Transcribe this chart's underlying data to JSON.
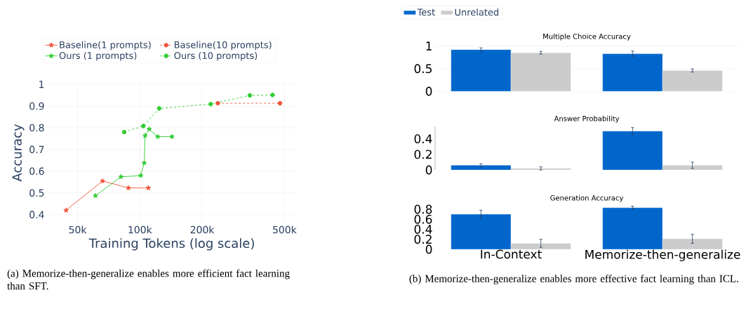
{
  "chart_data": [
    {
      "type": "line",
      "xlabel": "Training Tokens (log scale)",
      "ylabel": "Accuracy",
      "log": "x",
      "grid": true,
      "legend": "top",
      "xlim": [
        35600,
        574000
      ],
      "ylim": [
        0.36,
        1.01
      ],
      "xticks": [
        {
          "value": 50000,
          "label": "50k"
        },
        {
          "value": 100000,
          "label": "100k"
        },
        {
          "value": 200000,
          "label": "200k"
        },
        {
          "value": 500000,
          "label": "500k"
        }
      ],
      "yticks": [
        0.4,
        0.5,
        0.6,
        0.7,
        0.8,
        0.9,
        1
      ],
      "series": [
        {
          "name": "Baseline(1 prompts)",
          "color": "#ef553b",
          "marker": "star",
          "line_style": "solid",
          "x": [
            44000,
            66000,
            88000,
            110000
          ],
          "values": [
            0.42,
            0.555,
            0.523,
            0.523
          ]
        },
        {
          "name": "Baseline(10 prompts)",
          "color": "#ef553b",
          "marker": "circle",
          "line_style": "dashed",
          "x": [
            238000,
            476000
          ],
          "values": [
            0.913,
            0.913
          ]
        },
        {
          "name": "Ours (1 prompts)",
          "color": "#33cc33",
          "marker": "star",
          "line_style": "solid",
          "x": [
            61000,
            81000,
            101000,
            105000,
            106000,
            111000,
            122000,
            143000
          ],
          "values": [
            0.487,
            0.574,
            0.58,
            0.638,
            0.764,
            0.794,
            0.759,
            0.759
          ]
        },
        {
          "name": "Ours (10 prompts)",
          "color": "#33cc33",
          "marker": "circle",
          "line_style": "dashed",
          "x": [
            84000,
            104000,
            124000,
            220000,
            340000,
            438000
          ],
          "values": [
            0.78,
            0.808,
            0.889,
            0.909,
            0.949,
            0.951
          ]
        }
      ],
      "annotations": [
        "(a) Memorize-then-generalize enables more efficient fact learning than SFT."
      ]
    },
    {
      "type": "bar",
      "title": "Multiple Choice Accuracy",
      "ylim": [
        0,
        1.04
      ],
      "yticks": [
        0,
        0.5,
        1
      ],
      "grid": true,
      "legend": "top",
      "tick_labels": "y",
      "series": [
        {
          "name": "Test",
          "color": "#0066cc",
          "values": [
            0.92,
            0.83
          ],
          "errors": [
            0.04,
            0.06
          ]
        },
        {
          "name": "Unrelated",
          "color": "#cccccc",
          "values": [
            0.85,
            0.46
          ],
          "errors": [
            0.03,
            0.035
          ]
        }
      ]
    },
    {
      "type": "bar",
      "title": "Answer Probability",
      "ylim": [
        0,
        0.56
      ],
      "yticks": [
        0,
        0.2,
        0.4
      ],
      "tick_labels": "y",
      "series": [
        {
          "color": "#0066cc",
          "values": [
            0.06,
            0.5
          ],
          "errors": [
            0.02,
            0.045
          ]
        },
        {
          "color": "#cccccc",
          "values": [
            0.02,
            0.06
          ],
          "errors": [
            0.02,
            0.04
          ]
        }
      ]
    },
    {
      "type": "bar",
      "title": "Generation Accuracy",
      "categories": [
        "In-Context",
        "Memorize-then-generalize"
      ],
      "ylim": [
        0,
        0.87
      ],
      "yticks": [
        0,
        0.2,
        0.4,
        0.6,
        0.8
      ],
      "series": [
        {
          "color": "#0066cc",
          "values": [
            0.7,
            0.83
          ],
          "errors": [
            0.08,
            0.03
          ]
        },
        {
          "color": "#cccccc",
          "values": [
            0.12,
            0.21
          ],
          "errors": [
            0.08,
            0.09
          ]
        }
      ],
      "annotations": [
        "(b) Memorize-then-generalize enables more effective fact learning than ICL."
      ]
    }
  ]
}
